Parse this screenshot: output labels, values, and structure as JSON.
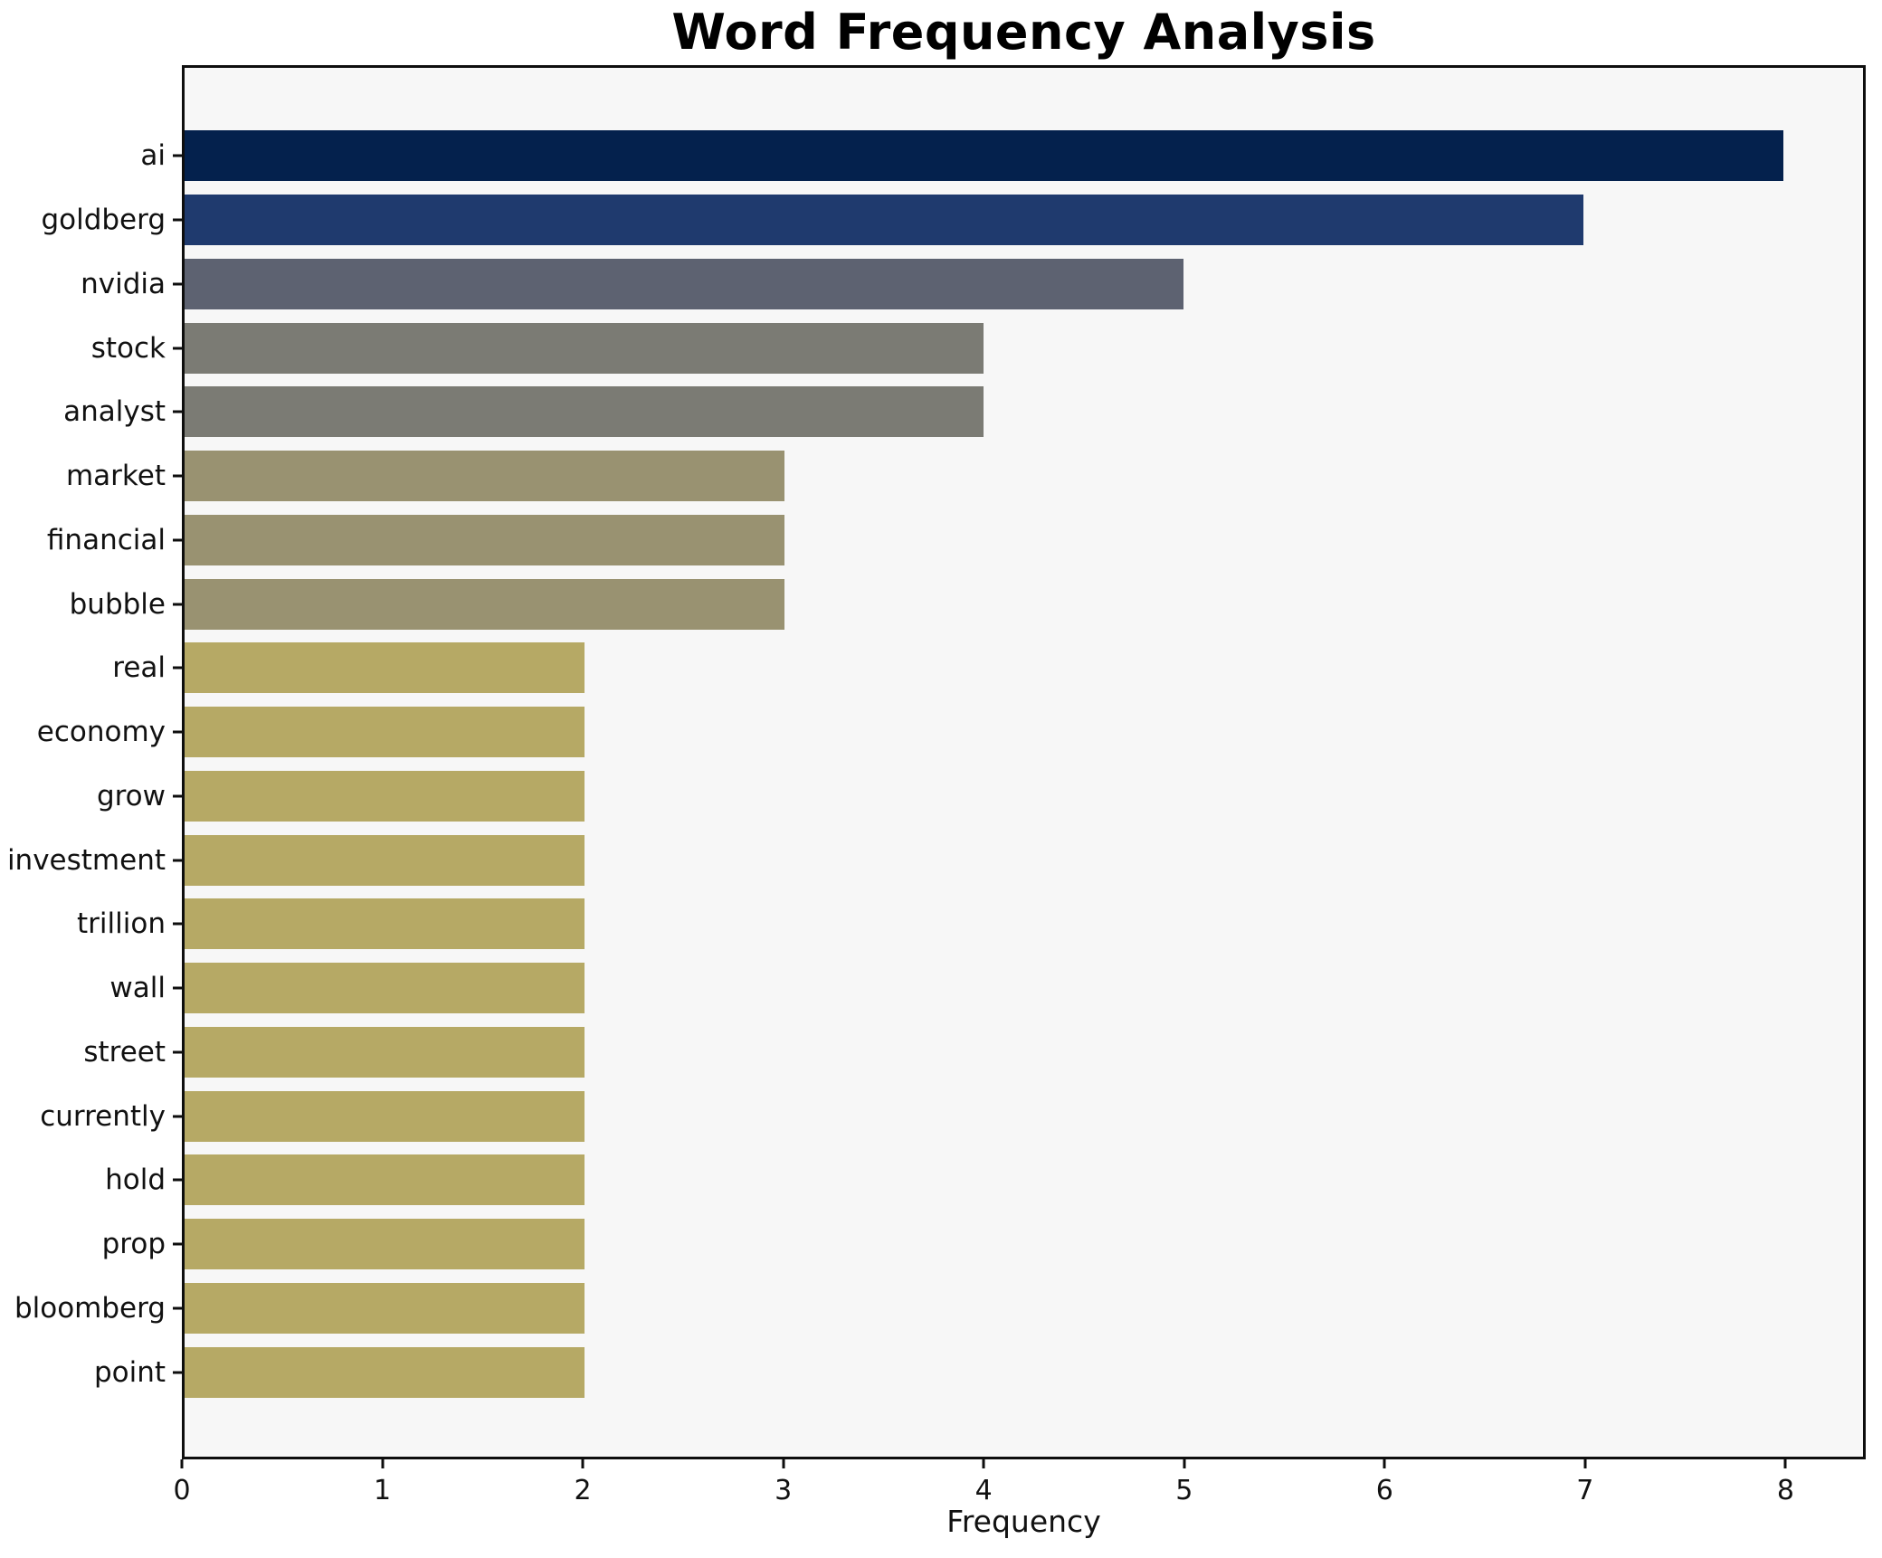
{
  "figure": {
    "background": "#ffffff",
    "plot_background": "#f7f7f7",
    "spine_color": "#0e0e0e",
    "text_color": "#111111"
  },
  "chart_data": {
    "type": "bar",
    "orientation": "horizontal",
    "title": "Word Frequency Analysis",
    "xlabel": "Frequency",
    "ylabel": "",
    "categories": [
      "ai",
      "goldberg",
      "nvidia",
      "stock",
      "analyst",
      "market",
      "financial",
      "bubble",
      "real",
      "economy",
      "grow",
      "investment",
      "trillion",
      "wall",
      "street",
      "currently",
      "hold",
      "prop",
      "bloomberg",
      "point"
    ],
    "values": [
      8,
      7,
      5,
      4,
      4,
      3,
      3,
      3,
      2,
      2,
      2,
      2,
      2,
      2,
      2,
      2,
      2,
      2,
      2,
      2
    ],
    "bar_colors": [
      "#04214d",
      "#1f3a6e",
      "#5d6271",
      "#7b7b74",
      "#7b7b74",
      "#999271",
      "#999271",
      "#999271",
      "#b6a965",
      "#b6a965",
      "#b6a965",
      "#b6a965",
      "#b6a965",
      "#b6a965",
      "#b6a965",
      "#b6a965",
      "#b6a965",
      "#b6a965",
      "#b6a965",
      "#b6a965"
    ],
    "xticks": [
      0,
      1,
      2,
      3,
      4,
      5,
      6,
      7,
      8
    ],
    "xlim": [
      0,
      8.4
    ],
    "grid": false
  }
}
